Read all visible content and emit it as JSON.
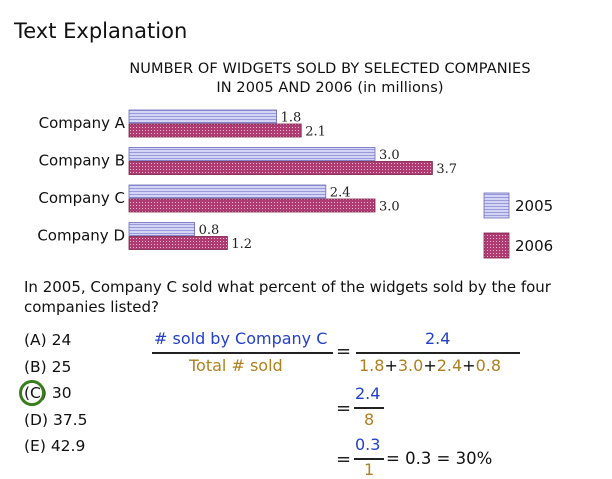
{
  "heading": "Text Explanation",
  "chart_data": {
    "type": "bar",
    "orientation": "horizontal",
    "title_line1": "NUMBER OF WIDGETS SOLD BY SELECTED COMPANIES",
    "title_line2": "IN 2005 AND 2006 (in millions)",
    "categories": [
      "Company A",
      "Company B",
      "Company C",
      "Company D"
    ],
    "series": [
      {
        "name": "2005",
        "values": [
          1.8,
          3.0,
          2.4,
          0.8
        ],
        "value_labels": [
          "1.8",
          "3.0",
          "2.4",
          "0.8"
        ],
        "color": "#c8c8f2"
      },
      {
        "name": "2006",
        "values": [
          2.1,
          3.7,
          3.0,
          1.2
        ],
        "value_labels": [
          "2.1",
          "3.7",
          "3.0",
          "1.2"
        ],
        "color": "#a8336a"
      }
    ],
    "xlim": [
      0,
      3.7
    ],
    "legend_position": "right",
    "grid": false
  },
  "question": "In 2005, Company C sold what percent of the widgets sold by the four companies listed?",
  "choices": [
    {
      "label": "(A) 24"
    },
    {
      "label": "(B) 25"
    },
    {
      "label": "(C) 30",
      "correct": true
    },
    {
      "label": "(D) 37.5"
    },
    {
      "label": "(E) 42.9"
    }
  ],
  "explanation": {
    "numerator_text": "# sold by Company C",
    "denominator_text": "Total # sold",
    "eq": "=",
    "step1_num": "2.4",
    "step1_den": [
      "1.8",
      "+",
      "3.0",
      "+",
      "2.4",
      "+",
      "0.8"
    ],
    "step2_num": "2.4",
    "step2_den": "8",
    "step3_num": "0.3",
    "step3_den": "1",
    "result": "= 0.3 = 30%",
    "colors": {
      "blue": "#2340c8",
      "gold": "#b08020"
    }
  }
}
